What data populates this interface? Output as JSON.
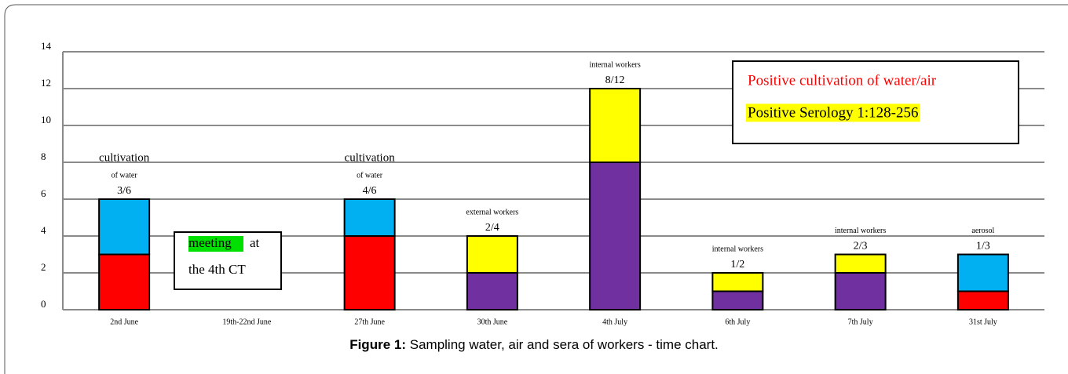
{
  "chart_data": {
    "type": "stacked_bar",
    "categories": [
      "2nd June",
      "19th-22nd June",
      "27th June",
      "30th June",
      "4th July",
      "6th July",
      "7th July",
      "31st July"
    ],
    "series": [
      {
        "name": "Positive cultivation of water/air",
        "color": "#ff0000",
        "values": [
          3,
          null,
          4,
          null,
          null,
          null,
          null,
          1
        ]
      },
      {
        "color": "#7030a0",
        "values": [
          null,
          null,
          null,
          2,
          8,
          1,
          2,
          null
        ]
      },
      {
        "color": "#00b0f0",
        "values": [
          3,
          null,
          2,
          null,
          null,
          null,
          null,
          2
        ]
      },
      {
        "name": "Positive Serology  1:128-256",
        "color": "#ffff00",
        "values": [
          null,
          null,
          null,
          2,
          4,
          1,
          1,
          null
        ]
      }
    ],
    "bar_labels": [
      [
        "cultivation",
        "of water",
        "3/6"
      ],
      null,
      [
        "cultivation",
        "of water",
        "4/6"
      ],
      [
        "external workers",
        "2/4"
      ],
      [
        "internal workers",
        "8/12"
      ],
      [
        "internal workers",
        "1/2"
      ],
      [
        "internal workers",
        "2/3"
      ],
      [
        "aerosol",
        "1/3"
      ]
    ],
    "note": {
      "highlight": "meeting",
      "text": "at",
      "line2": "the 4th CT"
    },
    "ylim": [
      0,
      14
    ],
    "yticks": [
      0,
      2,
      4,
      6,
      8,
      10,
      12,
      14
    ],
    "grid": true,
    "caption": {
      "label": "Figure 1:",
      "text": "Sampling water, air and sera of workers - time chart."
    }
  }
}
